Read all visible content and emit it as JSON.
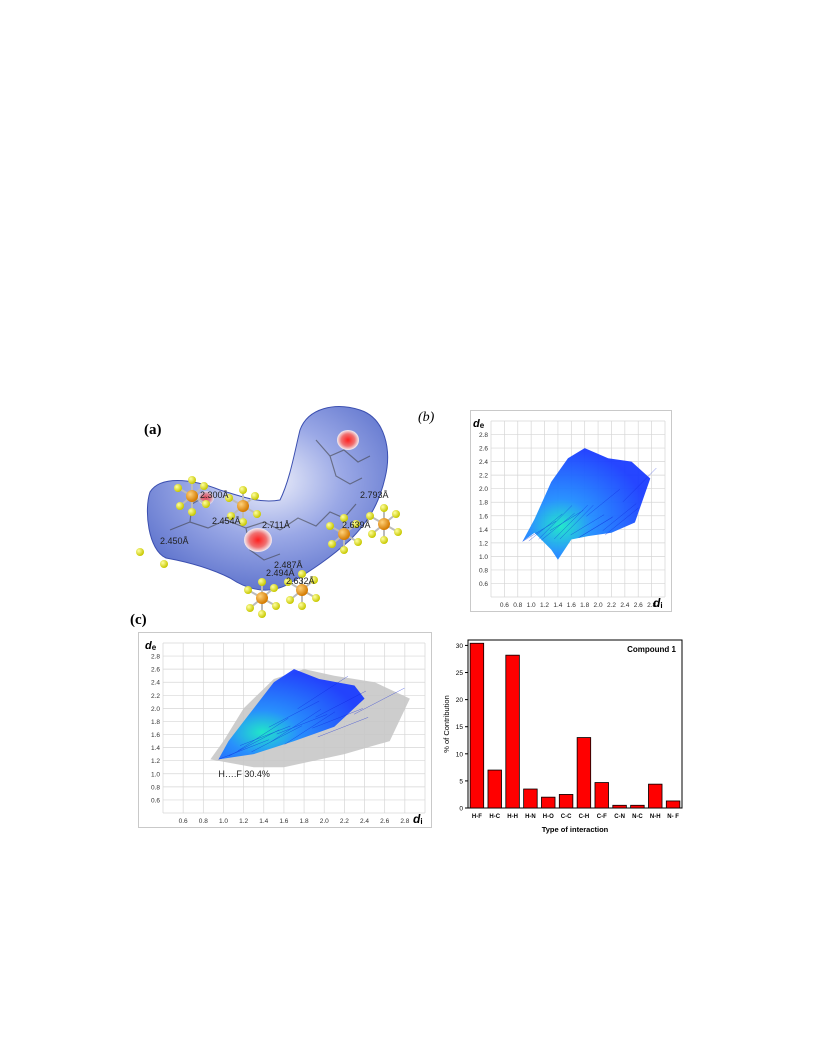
{
  "figure": {
    "panel_a": {
      "label": "(a)",
      "distances": [
        "2.300Å",
        "2.454Å",
        "2.711Å",
        "2.450Å",
        "2.639Å",
        "2.793Å",
        "2.487Å",
        "2.494Å",
        "2.632Å"
      ]
    },
    "panel_b": {
      "label": "(b)",
      "y_axis_label": "d",
      "y_axis_sub": "e",
      "x_axis_label": "d",
      "x_axis_sub": "i"
    },
    "panel_c": {
      "label": "(c)",
      "y_axis_label": "d",
      "y_axis_sub": "e",
      "x_axis_label": "d",
      "x_axis_sub": "i",
      "annotation": "H….F 30.4%"
    },
    "colors": {
      "surface_blue": "#5e75cf",
      "contact_red": "#e03030",
      "bar_red": "#ff0000",
      "fingerprint_blue": "#1a3cff",
      "fingerprint_cyan": "#18e8c8",
      "grey_cloud": "#c8c8c8"
    }
  },
  "chart_data": [
    {
      "type": "scatter",
      "title": "",
      "xlabel": "di",
      "ylabel": "de",
      "xlim": [
        0.4,
        3.0
      ],
      "ylim": [
        0.4,
        3.0
      ],
      "x_ticks": [
        "0.6",
        "0.8",
        "1.0",
        "1.2",
        "1.4",
        "1.6",
        "1.8",
        "2.0",
        "2.2",
        "2.4",
        "2.6",
        "2.8"
      ],
      "y_ticks": [
        "0.6",
        "0.8",
        "1.0",
        "1.2",
        "1.4",
        "1.6",
        "1.8",
        "2.0",
        "2.2",
        "2.4",
        "2.6",
        "2.8"
      ],
      "region_outline": [
        [
          0.87,
          1.22
        ],
        [
          1.05,
          1.35
        ],
        [
          1.3,
          1.1
        ],
        [
          1.4,
          0.95
        ],
        [
          1.6,
          1.25
        ],
        [
          1.85,
          1.3
        ],
        [
          2.2,
          1.35
        ],
        [
          2.55,
          1.5
        ],
        [
          2.78,
          2.15
        ],
        [
          2.5,
          2.4
        ],
        [
          2.15,
          2.45
        ],
        [
          1.8,
          2.6
        ],
        [
          1.55,
          2.45
        ],
        [
          1.3,
          2.1
        ],
        [
          1.05,
          1.55
        ]
      ],
      "grid": true
    },
    {
      "type": "scatter",
      "title": "",
      "xlabel": "di",
      "ylabel": "de",
      "xlim": [
        0.4,
        3.0
      ],
      "ylim": [
        0.4,
        3.0
      ],
      "x_ticks": [
        "0.6",
        "0.8",
        "1.0",
        "1.2",
        "1.4",
        "1.6",
        "1.8",
        "2.0",
        "2.2",
        "2.4",
        "2.6",
        "2.8"
      ],
      "y_ticks": [
        "0.6",
        "0.8",
        "1.0",
        "1.2",
        "1.4",
        "1.6",
        "1.8",
        "2.0",
        "2.2",
        "2.4",
        "2.6",
        "2.8"
      ],
      "highlight": "H….F 30.4%",
      "highlight_outline": [
        [
          0.95,
          1.22
        ],
        [
          1.3,
          1.3
        ],
        [
          1.7,
          1.5
        ],
        [
          2.1,
          1.72
        ],
        [
          2.4,
          2.15
        ],
        [
          2.3,
          2.35
        ],
        [
          1.95,
          2.45
        ],
        [
          1.7,
          2.6
        ],
        [
          1.5,
          2.4
        ],
        [
          1.25,
          1.9
        ],
        [
          1.05,
          1.5
        ]
      ],
      "background_outline": [
        [
          0.87,
          1.22
        ],
        [
          1.3,
          1.1
        ],
        [
          1.6,
          1.1
        ],
        [
          2.2,
          1.3
        ],
        [
          2.65,
          1.5
        ],
        [
          2.85,
          2.15
        ],
        [
          2.5,
          2.4
        ],
        [
          2.1,
          2.5
        ],
        [
          1.8,
          2.6
        ],
        [
          1.5,
          2.45
        ],
        [
          1.2,
          2.0
        ],
        [
          1.0,
          1.5
        ]
      ],
      "grid": true
    },
    {
      "type": "bar",
      "title": "Compound 1",
      "xlabel": "Type of interaction",
      "ylabel": "% of Contribution",
      "ylim": [
        0,
        31
      ],
      "y_ticks": [
        0,
        5,
        10,
        15,
        20,
        25,
        30
      ],
      "categories": [
        "H-F",
        "H-C",
        "H-H",
        "H-N",
        "H-O",
        "C-C",
        "C-H",
        "C-F",
        "C-N",
        "N-C",
        "N-H",
        "N- F"
      ],
      "values": [
        30.4,
        7.0,
        28.2,
        3.5,
        2.0,
        2.5,
        13.0,
        4.7,
        0.5,
        0.5,
        4.4,
        1.3
      ],
      "grid": false
    }
  ]
}
